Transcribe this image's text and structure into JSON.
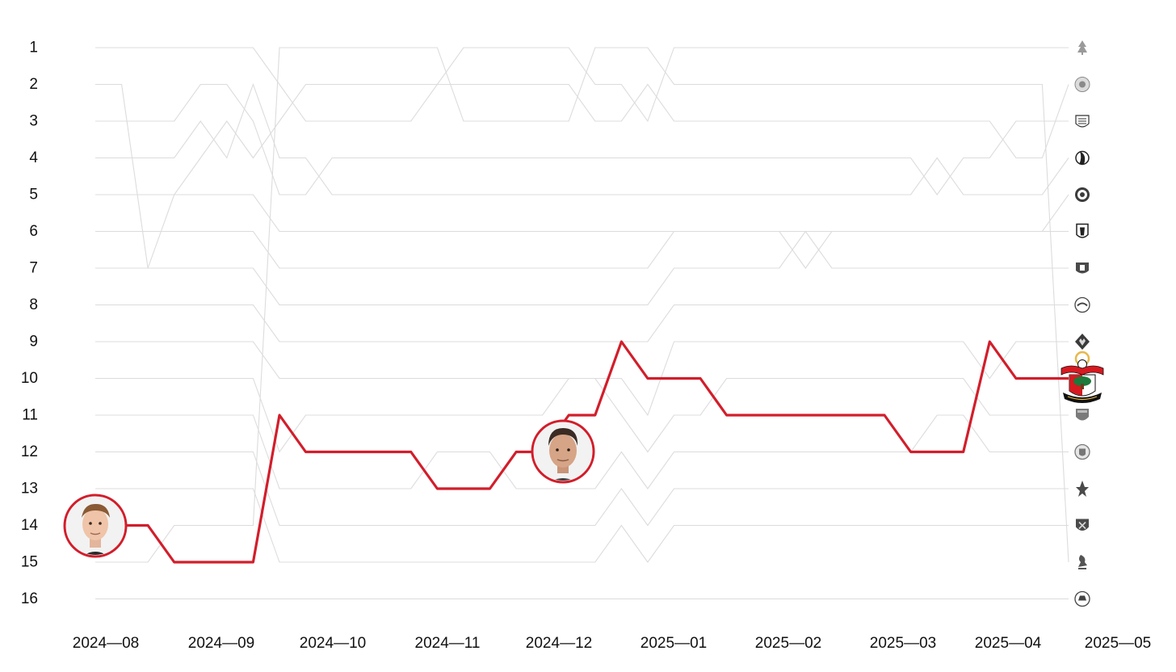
{
  "chart_data": {
    "type": "line",
    "title": "",
    "xlabel": "",
    "ylabel": "",
    "y_ticks": [
      "1",
      "2",
      "3",
      "4",
      "5",
      "6",
      "7",
      "8",
      "9",
      "10",
      "11",
      "12",
      "13",
      "14",
      "15",
      "16"
    ],
    "ylim": [
      1,
      16
    ],
    "y_inverted": true,
    "x_ticks": [
      "2024—08",
      "2024—09",
      "2024—10",
      "2024—11",
      "2024—12",
      "2025—01",
      "2025—02",
      "2025—03",
      "2025—04",
      "2025—05"
    ],
    "x_tick_dates": [
      "2024-08-01",
      "2024-09-01",
      "2024-10-01",
      "2024-11-01",
      "2024-12-01",
      "2025-01-01",
      "2025-02-01",
      "2025-03-01",
      "2025-04-01",
      "2025-05-01"
    ],
    "dates": [
      "2024-08-01",
      "2024-08-08",
      "2024-08-15",
      "2024-08-22",
      "2024-08-29",
      "2024-09-05",
      "2024-09-12",
      "2024-09-19",
      "2024-09-26",
      "2024-10-03",
      "2024-10-10",
      "2024-10-17",
      "2024-10-24",
      "2024-10-31",
      "2024-11-07",
      "2024-11-14",
      "2024-11-21",
      "2024-11-28",
      "2024-12-05",
      "2024-12-12",
      "2024-12-19",
      "2024-12-26",
      "2025-01-02",
      "2025-01-09",
      "2025-01-16",
      "2025-01-23",
      "2025-01-30",
      "2025-02-06",
      "2025-02-13",
      "2025-02-20",
      "2025-02-27",
      "2025-03-06",
      "2025-03-13",
      "2025-03-20",
      "2025-03-27",
      "2025-04-03",
      "2025-04-10",
      "2025-04-17"
    ],
    "highlight_series": "Southampton",
    "highlight_color": "#d21e2b",
    "background_color": "#dcdcdc",
    "final_order_icons": [
      "forest-crest",
      "leicester-crest",
      "newcastle-crest",
      "bournemouth-crest",
      "chelsea-crest",
      "fulham-crest",
      "everton-crest",
      "brighton-crest",
      "wolves-crest",
      "southampton-crest",
      "arsenal-crest",
      "man-city-crest",
      "palace-crest",
      "west-ham-crest",
      "liverpool-crest",
      "man-utd-crest"
    ],
    "series": [
      {
        "name": "Southampton",
        "values": [
          14,
          14,
          14,
          15,
          15,
          15,
          15,
          11,
          12,
          12,
          12,
          12,
          12,
          13,
          13,
          13,
          12,
          12,
          11,
          11,
          9,
          10,
          10,
          10,
          11,
          11,
          11,
          11,
          11,
          11,
          11,
          12,
          12,
          12,
          9,
          10,
          10,
          10
        ]
      },
      {
        "name": "",
        "values": [
          1,
          1,
          1,
          1,
          1,
          1,
          1,
          2,
          3,
          3,
          3,
          3,
          3,
          2,
          1,
          1,
          1,
          1,
          1,
          2,
          2,
          3,
          1,
          1,
          1,
          1,
          1,
          1,
          1,
          1,
          1,
          1,
          1,
          1,
          1,
          1,
          1,
          1
        ]
      },
      {
        "name": "",
        "values": [
          2,
          2,
          7,
          5,
          4,
          3,
          4,
          3,
          2,
          2,
          2,
          2,
          2,
          2,
          2,
          2,
          2,
          2,
          2,
          3,
          3,
          2,
          3,
          3,
          3,
          3,
          3,
          3,
          3,
          3,
          3,
          3,
          3,
          3,
          3,
          4,
          4,
          2
        ]
      },
      {
        "name": "",
        "values": [
          3,
          3,
          3,
          3,
          2,
          2,
          3,
          5,
          5,
          4,
          4,
          4,
          4,
          4,
          4,
          4,
          4,
          4,
          4,
          4,
          4,
          4,
          4,
          4,
          4,
          4,
          4,
          4,
          4,
          4,
          4,
          4,
          5,
          4,
          4,
          3,
          3,
          3
        ]
      },
      {
        "name": "",
        "values": [
          4,
          4,
          4,
          4,
          3,
          4,
          2,
          4,
          4,
          5,
          5,
          5,
          5,
          5,
          5,
          5,
          5,
          5,
          5,
          5,
          5,
          5,
          5,
          5,
          5,
          5,
          5,
          5,
          5,
          5,
          5,
          5,
          4,
          5,
          5,
          5,
          5,
          4
        ]
      },
      {
        "name": "",
        "values": [
          5,
          5,
          5,
          5,
          5,
          5,
          5,
          6,
          6,
          6,
          6,
          6,
          6,
          6,
          6,
          6,
          6,
          6,
          6,
          6,
          6,
          6,
          6,
          6,
          6,
          6,
          6,
          6,
          6,
          6,
          6,
          6,
          6,
          6,
          6,
          6,
          6,
          5
        ]
      },
      {
        "name": "",
        "values": [
          6,
          6,
          6,
          6,
          6,
          6,
          6,
          7,
          7,
          7,
          7,
          7,
          7,
          7,
          7,
          7,
          7,
          7,
          7,
          7,
          7,
          7,
          6,
          6,
          6,
          6,
          6,
          7,
          6,
          6,
          6,
          6,
          6,
          6,
          6,
          6,
          6,
          6
        ]
      },
      {
        "name": "",
        "values": [
          7,
          7,
          7,
          7,
          7,
          7,
          7,
          8,
          8,
          8,
          8,
          8,
          8,
          8,
          8,
          8,
          8,
          8,
          8,
          8,
          8,
          8,
          7,
          7,
          7,
          7,
          7,
          6,
          7,
          7,
          7,
          7,
          7,
          7,
          7,
          7,
          7,
          7
        ]
      },
      {
        "name": "",
        "values": [
          8,
          8,
          8,
          8,
          8,
          8,
          8,
          9,
          9,
          9,
          9,
          9,
          9,
          9,
          9,
          9,
          9,
          9,
          9,
          9,
          9,
          9,
          8,
          8,
          8,
          8,
          8,
          8,
          8,
          8,
          8,
          8,
          8,
          8,
          8,
          8,
          8,
          8
        ]
      },
      {
        "name": "",
        "values": [
          9,
          9,
          9,
          9,
          9,
          9,
          9,
          10,
          10,
          10,
          10,
          10,
          10,
          10,
          10,
          10,
          10,
          10,
          10,
          10,
          10,
          11,
          9,
          9,
          9,
          9,
          9,
          9,
          9,
          9,
          9,
          9,
          9,
          9,
          10,
          9,
          9,
          9
        ]
      },
      {
        "name": "",
        "values": [
          10,
          10,
          10,
          10,
          10,
          10,
          10,
          12,
          11,
          11,
          11,
          11,
          11,
          11,
          11,
          11,
          11,
          11,
          10,
          10,
          11,
          12,
          11,
          11,
          10,
          10,
          10,
          10,
          10,
          10,
          10,
          10,
          10,
          10,
          11,
          11,
          11,
          11
        ]
      },
      {
        "name": "",
        "values": [
          11,
          11,
          11,
          11,
          11,
          11,
          11,
          13,
          13,
          13,
          13,
          13,
          13,
          12,
          12,
          12,
          13,
          13,
          13,
          13,
          12,
          13,
          12,
          12,
          12,
          12,
          12,
          12,
          12,
          12,
          12,
          12,
          11,
          11,
          12,
          12,
          12,
          12
        ]
      },
      {
        "name": "",
        "values": [
          12,
          12,
          12,
          12,
          12,
          12,
          12,
          14,
          14,
          14,
          14,
          14,
          14,
          14,
          14,
          14,
          14,
          14,
          14,
          14,
          13,
          14,
          13,
          13,
          13,
          13,
          13,
          13,
          13,
          13,
          13,
          13,
          13,
          13,
          13,
          13,
          13,
          13
        ]
      },
      {
        "name": "",
        "values": [
          13,
          13,
          13,
          13,
          13,
          13,
          13,
          15,
          15,
          15,
          15,
          15,
          15,
          15,
          15,
          15,
          15,
          15,
          15,
          15,
          14,
          15,
          14,
          14,
          14,
          14,
          14,
          14,
          14,
          14,
          14,
          14,
          14,
          14,
          14,
          14,
          14,
          14
        ]
      },
      {
        "name": "",
        "values": [
          15,
          15,
          15,
          14,
          14,
          14,
          14,
          1,
          1,
          1,
          1,
          1,
          1,
          1,
          3,
          3,
          3,
          3,
          3,
          1,
          1,
          1,
          2,
          2,
          2,
          2,
          2,
          2,
          2,
          2,
          2,
          2,
          2,
          2,
          2,
          2,
          2,
          15
        ]
      },
      {
        "name": "",
        "values": [
          16,
          16,
          16,
          16,
          16,
          16,
          16,
          16,
          16,
          16,
          16,
          16,
          16,
          16,
          16,
          16,
          16,
          16,
          16,
          16,
          16,
          16,
          16,
          16,
          16,
          16,
          16,
          16,
          16,
          16,
          16,
          16,
          16,
          16,
          16,
          16,
          16,
          16
        ]
      }
    ]
  }
}
